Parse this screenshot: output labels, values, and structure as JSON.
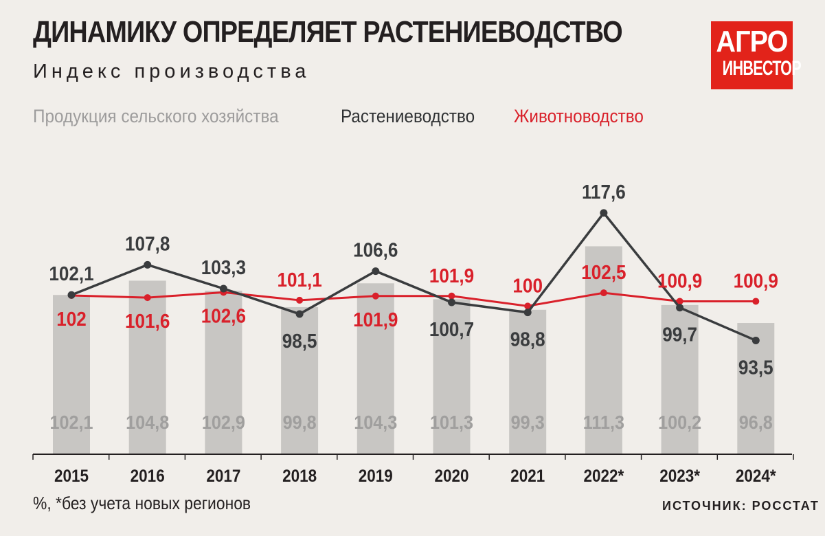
{
  "header": {
    "title": "ДИНАМИКУ ОПРЕДЕЛЯЕТ РАСТЕНИЕВОДСТВО",
    "subtitle": "Индекс производства"
  },
  "logo": {
    "line1": "АГРО",
    "line2": "ИНВЕСТОР"
  },
  "footnote": "%, *без учета новых регионов",
  "source": "ИСТОЧНИК: РОССТАТ",
  "colors": {
    "background": "#f1eeea",
    "total_bar": "#c8c6c3",
    "total_label": "#a09f9e",
    "crop": "#3a3c3e",
    "livestock": "#d9202a",
    "logo": "#e2231a"
  },
  "chart_data": {
    "type": "bar",
    "categories": [
      "2015",
      "2016",
      "2017",
      "2018",
      "2019",
      "2020",
      "2021",
      "2022*",
      "2023*",
      "2024*"
    ],
    "series": [
      {
        "name": "Продукция сельского хозяйства",
        "kind": "bar",
        "values": [
          102.1,
          104.8,
          102.9,
          99.8,
          104.3,
          101.3,
          99.3,
          111.3,
          100.2,
          96.8
        ],
        "labels": [
          "102,1",
          "104,8",
          "102,9",
          "99,8",
          "104,3",
          "101,3",
          "99,3",
          "111,3",
          "100,2",
          "96,8"
        ]
      },
      {
        "name": "Растениеводство",
        "kind": "line",
        "values": [
          102.1,
          107.8,
          103.3,
          98.5,
          106.6,
          100.7,
          98.8,
          117.6,
          99.7,
          93.5
        ],
        "labels": [
          "102,1",
          "107,8",
          "103,3",
          "98,5",
          "106,6",
          "100,7",
          "98,8",
          "117,6",
          "99,7",
          "93,5"
        ],
        "label_pos": [
          "above",
          "above",
          "above",
          "below",
          "above",
          "below",
          "below",
          "above",
          "below",
          "below"
        ]
      },
      {
        "name": "Животноводство",
        "kind": "line",
        "values": [
          102.0,
          101.6,
          102.6,
          101.1,
          101.9,
          101.9,
          100.0,
          102.5,
          100.9,
          100.9
        ],
        "labels": [
          "102",
          "101,6",
          "102,6",
          "101,1",
          "101,9",
          "101,9",
          "100",
          "102,5",
          "100,9",
          "100,9"
        ],
        "label_pos": [
          "below",
          "below",
          "below",
          "above",
          "below",
          "above",
          "above",
          "above",
          "above",
          "above"
        ]
      }
    ],
    "ylim": [
      72,
      122
    ],
    "grid": false,
    "legend": "top-left"
  }
}
